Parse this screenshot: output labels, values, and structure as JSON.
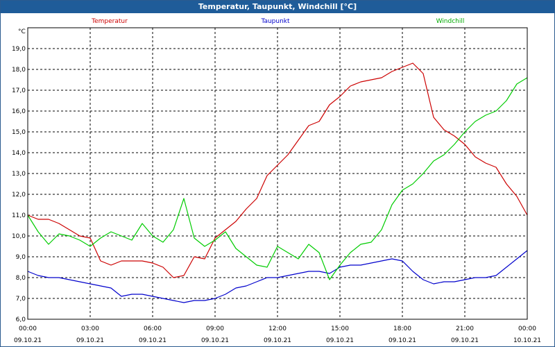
{
  "chart_data": {
    "type": "line",
    "title": "Temperatur, Taupunkt, Windchill [°C]",
    "ylabel": "°C",
    "ylim": [
      6.0,
      20.0
    ],
    "yticks": [
      "6,0",
      "7,0",
      "8,0",
      "9,0",
      "10,0",
      "11,0",
      "12,0",
      "13,0",
      "14,0",
      "15,0",
      "16,0",
      "17,0",
      "18,0",
      "19,0"
    ],
    "xticks": [
      {
        "time": "00:00",
        "date": "09.10.21"
      },
      {
        "time": "03:00",
        "date": "09.10.21"
      },
      {
        "time": "06:00",
        "date": "09.10.21"
      },
      {
        "time": "09:00",
        "date": "09.10.21"
      },
      {
        "time": "12:00",
        "date": "09.10.21"
      },
      {
        "time": "15:00",
        "date": "09.10.21"
      },
      {
        "time": "18:00",
        "date": "09.10.21"
      },
      {
        "time": "21:00",
        "date": "09.10.21"
      },
      {
        "time": "00:00",
        "date": "10.10.21"
      }
    ],
    "grid": true,
    "legend_position": "top",
    "x_hours": [
      0,
      0.5,
      1,
      1.5,
      2,
      2.5,
      3,
      3.5,
      4,
      4.5,
      5,
      5.5,
      6,
      6.5,
      7,
      7.5,
      8,
      8.5,
      9,
      9.5,
      10,
      10.5,
      11,
      11.5,
      12,
      12.5,
      13,
      13.5,
      14,
      14.5,
      15,
      15.5,
      16,
      16.5,
      17,
      17.5,
      18,
      18.5,
      19,
      19.5,
      20,
      20.5,
      21,
      21.5,
      22,
      22.5,
      23,
      23.5,
      24
    ],
    "series": [
      {
        "name": "Temperatur",
        "color": "#cc0000",
        "values": [
          11.0,
          10.8,
          10.8,
          10.6,
          10.3,
          10.0,
          9.9,
          8.8,
          8.6,
          8.8,
          8.8,
          8.8,
          8.7,
          8.5,
          8.0,
          8.1,
          9.0,
          8.9,
          9.9,
          10.3,
          10.7,
          11.3,
          11.8,
          12.9,
          13.4,
          13.9,
          14.6,
          15.3,
          15.5,
          16.3,
          16.7,
          17.2,
          17.4,
          17.5,
          17.6,
          17.9,
          18.1,
          18.3,
          17.8,
          15.7,
          15.1,
          14.8,
          14.4,
          13.8,
          13.5,
          13.3,
          12.5,
          11.9,
          11.0
        ]
      },
      {
        "name": "Taupunkt",
        "color": "#0000cc",
        "values": [
          8.3,
          8.1,
          8.0,
          8.0,
          7.9,
          7.8,
          7.7,
          7.6,
          7.5,
          7.1,
          7.2,
          7.2,
          7.1,
          7.0,
          6.9,
          6.8,
          6.9,
          6.9,
          7.0,
          7.2,
          7.5,
          7.6,
          7.8,
          8.0,
          8.0,
          8.1,
          8.2,
          8.3,
          8.3,
          8.2,
          8.5,
          8.6,
          8.6,
          8.7,
          8.8,
          8.9,
          8.8,
          8.3,
          7.9,
          7.7,
          7.8,
          7.8,
          7.9,
          8.0,
          8.0,
          8.1,
          8.5,
          8.9,
          9.3
        ]
      },
      {
        "name": "Windchill",
        "color": "#00cc00",
        "values": [
          11.0,
          10.2,
          9.6,
          10.1,
          10.0,
          9.8,
          9.5,
          9.9,
          10.2,
          10.0,
          9.8,
          10.6,
          10.0,
          9.7,
          10.3,
          11.8,
          9.9,
          9.5,
          9.8,
          10.2,
          9.4,
          9.0,
          8.6,
          8.5,
          9.5,
          9.2,
          8.9,
          9.6,
          9.2,
          7.9,
          8.6,
          9.2,
          9.6,
          9.7,
          10.3,
          11.5,
          12.2,
          12.5,
          13.0,
          13.6,
          13.9,
          14.4,
          15.0,
          15.5,
          15.8,
          16.0,
          16.5,
          17.3,
          17.6
        ]
      }
    ]
  }
}
